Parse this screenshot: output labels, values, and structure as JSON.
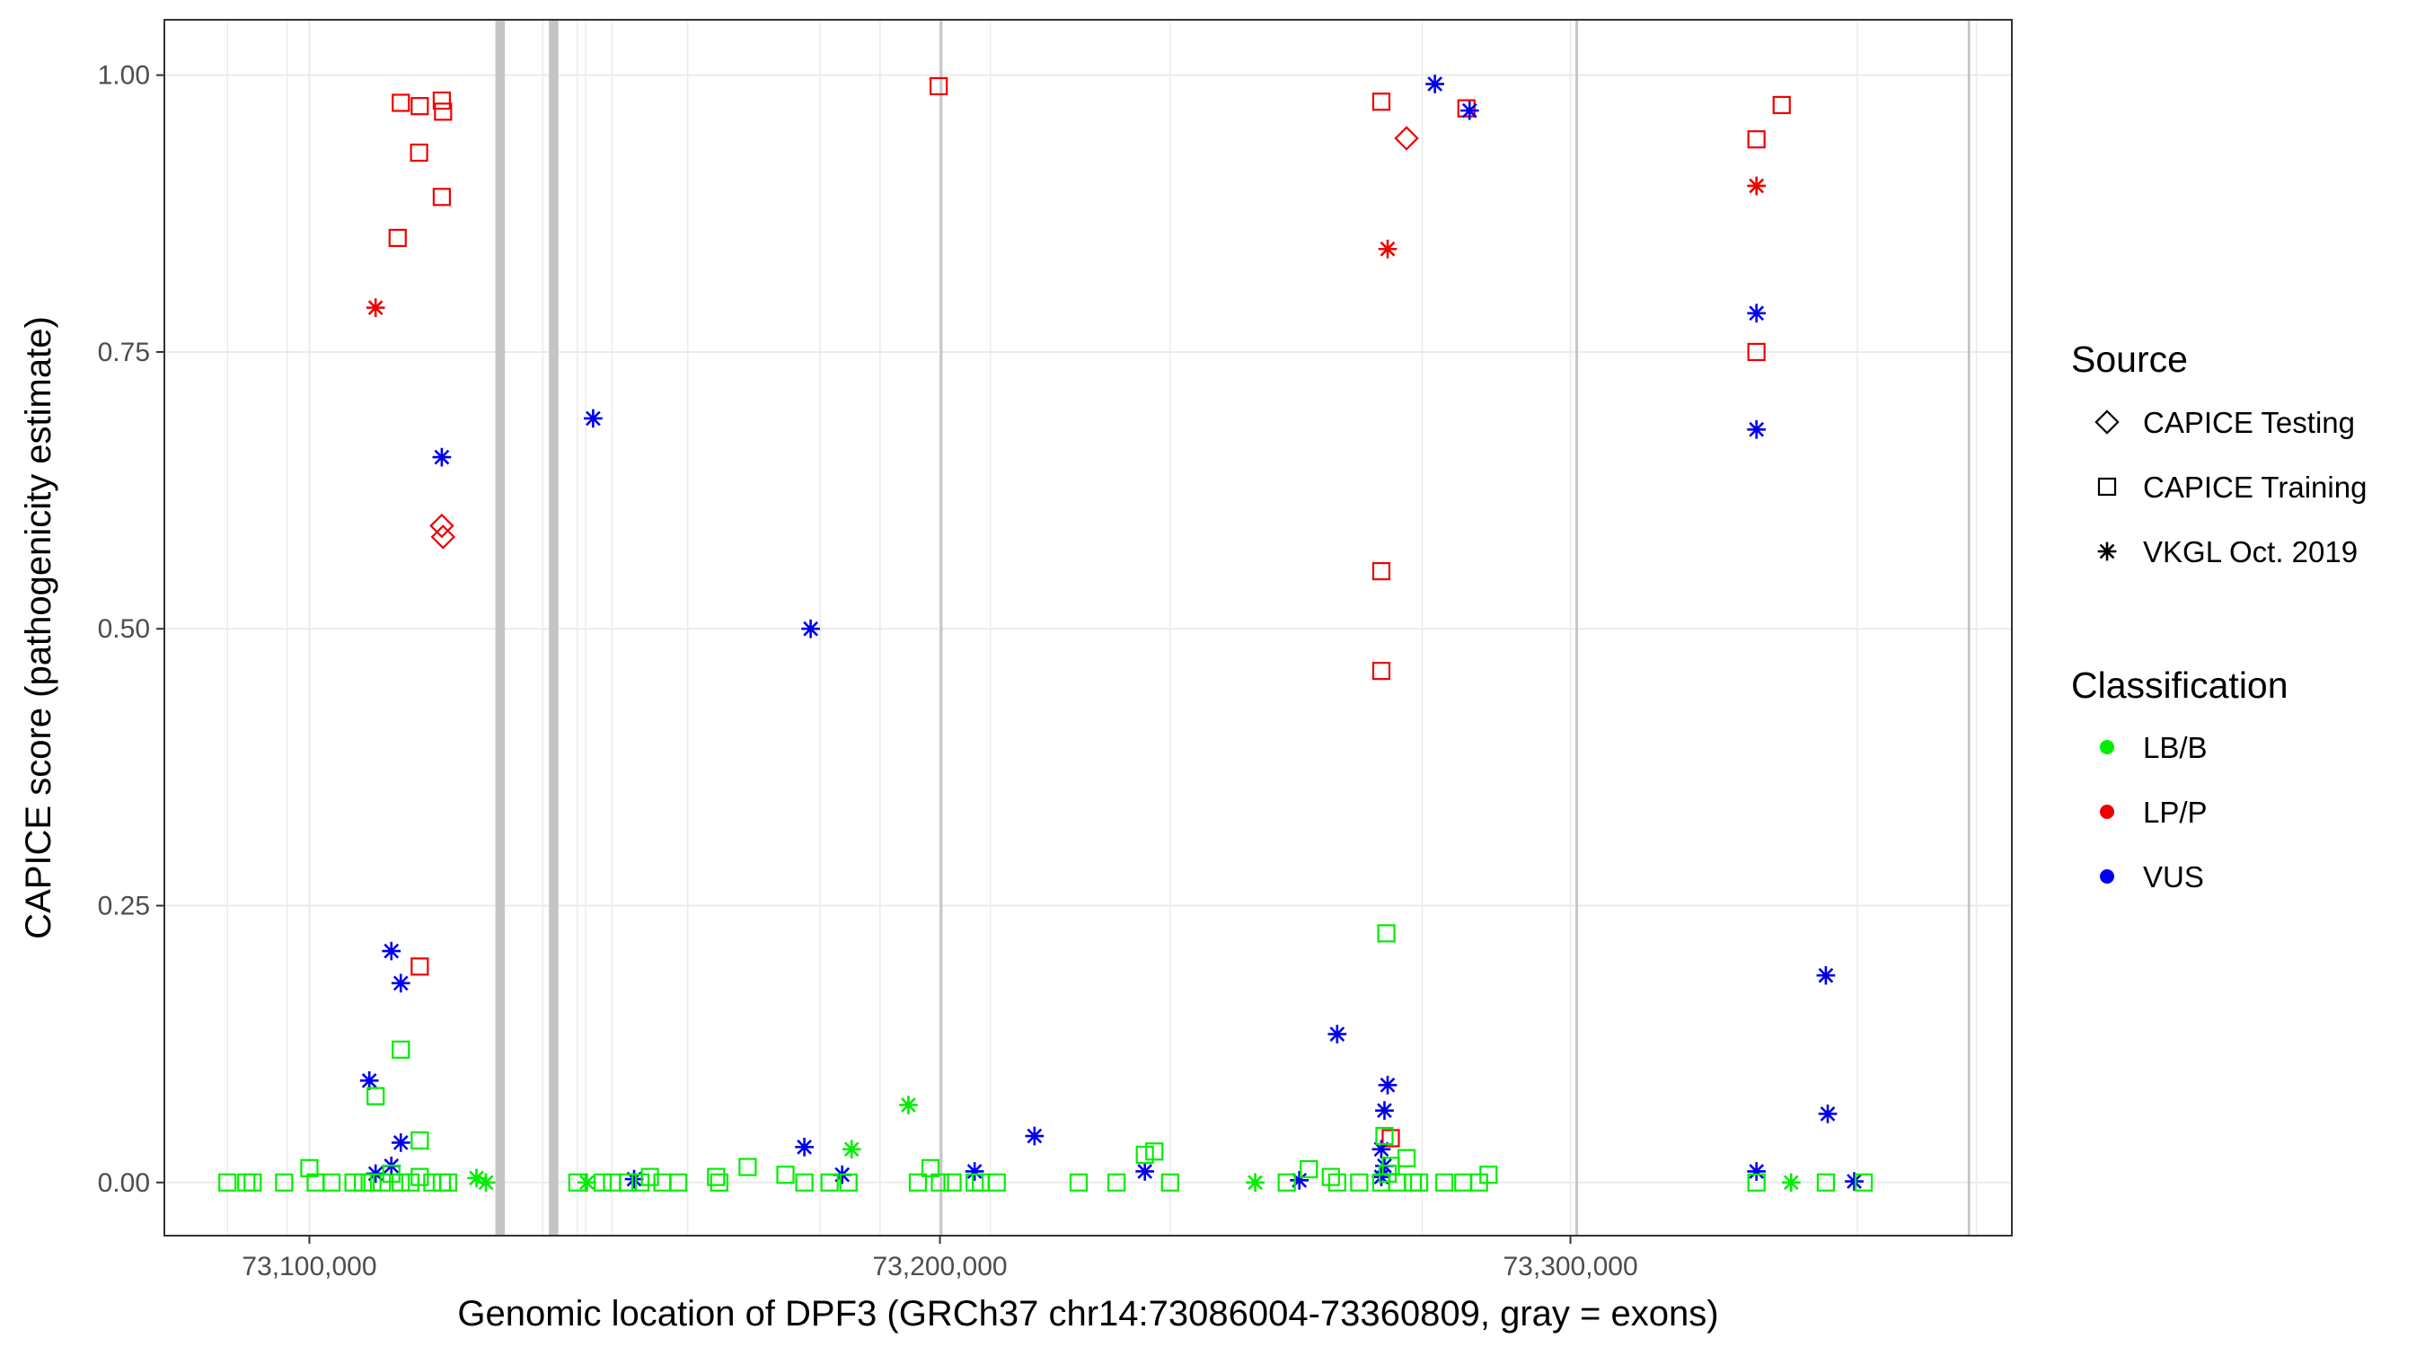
{
  "chart_data": {
    "type": "scatter",
    "title": "",
    "xlabel": "Genomic location of DPF3 (GRCh37 chr14:73086004-73360809, gray = exons)",
    "ylabel": "CAPICE score (pathogenicity estimate)",
    "xlim": [
      73077000,
      73370000
    ],
    "ylim": [
      -0.048,
      1.05
    ],
    "x_ticks": [
      73100000,
      73200000,
      73300000
    ],
    "x_tick_labels": [
      "73,100,000",
      "73,200,000",
      "73,300,000"
    ],
    "y_ticks": [
      0,
      0.25,
      0.5,
      0.75,
      1.0
    ],
    "y_tick_labels": [
      "0.00",
      "0.25",
      "0.50",
      "0.75",
      "1.00"
    ],
    "grid": true,
    "exons": [
      {
        "start": 73129500,
        "end": 73131000
      },
      {
        "start": 73138000,
        "end": 73139500
      },
      {
        "start": 73200000,
        "end": 73200400
      },
      {
        "start": 73300800,
        "end": 73301200
      },
      {
        "start": 73363000,
        "end": 73363400
      }
    ],
    "minor_grid_x": [
      73087000,
      73096500,
      73137000,
      73142500,
      73143800,
      73148000,
      73160000,
      73181000,
      73190500,
      73208000,
      73236500,
      73276500,
      73345500,
      73364400
    ],
    "legend": {
      "source": {
        "title": "Source",
        "entries": [
          {
            "label": "CAPICE Testing",
            "marker": "diamond"
          },
          {
            "label": "CAPICE Training",
            "marker": "square"
          },
          {
            "label": "VKGL Oct. 2019",
            "marker": "asterisk"
          }
        ]
      },
      "classification": {
        "title": "Classification",
        "entries": [
          {
            "label": "LB/B",
            "color": "#00ee00"
          },
          {
            "label": "LP/P",
            "color": "#ee0000"
          },
          {
            "label": "VUS",
            "color": "#0000ee"
          }
        ]
      },
      "placement": "right"
    },
    "colors": {
      "LB/B": "#00ee00",
      "LP/P": "#ee0000",
      "VUS": "#0000ee"
    },
    "series": [
      {
        "name": "LP/P",
        "source": "CAPICE Training",
        "marker": "square",
        "x": [
          73114500,
          73117500,
          73121000,
          73121200,
          73117400,
          73121000,
          73114000,
          73117500,
          73199800,
          73270000,
          73283500,
          73270000,
          73270000,
          73329500,
          73333500,
          73329500,
          73271500
        ],
        "y": [
          0.975,
          0.972,
          0.977,
          0.967,
          0.93,
          0.89,
          0.853,
          0.195,
          0.99,
          0.976,
          0.97,
          0.552,
          0.462,
          0.942,
          0.973,
          0.75,
          0.04
        ]
      },
      {
        "name": "LP/P",
        "source": "CAPICE Testing",
        "marker": "diamond",
        "x": [
          73121000,
          73121200,
          73274000
        ],
        "y": [
          0.593,
          0.583,
          0.943
        ]
      },
      {
        "name": "LP/P",
        "source": "VKGL Oct. 2019",
        "marker": "asterisk",
        "x": [
          73110500,
          73271000,
          73329500
        ],
        "y": [
          0.79,
          0.843,
          0.9
        ]
      },
      {
        "name": "VUS",
        "source": "VKGL Oct. 2019",
        "marker": "asterisk",
        "x": [
          73121000,
          73145000,
          73179500,
          73278500,
          73284000,
          73329500,
          73329500,
          73113000,
          73114500,
          73109500,
          73114500,
          73113000,
          73110500,
          73178500,
          73263000,
          73271000,
          73270500,
          73270000,
          73270500,
          73270000,
          73340500,
          73340800,
          73329500,
          73215000,
          73205500,
          73232500,
          73184500,
          73151500,
          73257000,
          73345000
        ],
        "y": [
          0.655,
          0.69,
          0.5,
          0.992,
          0.968,
          0.785,
          0.68,
          0.209,
          0.18,
          0.092,
          0.036,
          0.015,
          0.008,
          0.032,
          0.134,
          0.088,
          0.065,
          0.03,
          0.015,
          0.005,
          0.187,
          0.062,
          0.01,
          0.042,
          0.01,
          0.01,
          0.007,
          0.003,
          0.002,
          0.001
        ]
      },
      {
        "name": "LB/B",
        "source": "CAPICE Training",
        "marker": "square",
        "x": [
          73087000,
          73090000,
          73091000,
          73096000,
          73100000,
          73101000,
          73103500,
          73107000,
          73108500,
          73110000,
          73111500,
          73113000,
          73114500,
          73116000,
          73117500,
          73119500,
          73121000,
          73122000,
          73114500,
          73110500,
          73117500,
          73142500,
          73146500,
          73148000,
          73150500,
          73152500,
          73154000,
          73156000,
          73158500,
          73164500,
          73165000,
          73169500,
          73175500,
          73178500,
          73182500,
          73185500,
          73196500,
          73198500,
          73200000,
          73202000,
          73205500,
          73206500,
          73209000,
          73222000,
          73228000,
          73232500,
          73234000,
          73236500,
          73255000,
          73258500,
          73262000,
          73263000,
          73266500,
          73270000,
          73270500,
          73271000,
          73272500,
          73274000,
          73275000,
          73276000,
          73280000,
          73283000,
          73285500,
          73287000,
          73270800,
          73271500,
          73329500,
          73340500,
          73346500
        ],
        "y": [
          0.0,
          0.0,
          0.0,
          0.0,
          0.013,
          0.0,
          0.0,
          0.0,
          0.0,
          0.0,
          0.0,
          0.008,
          0.0,
          0.0,
          0.005,
          0.0,
          0.0,
          0.0,
          0.12,
          0.078,
          0.038,
          0.0,
          0.0,
          0.0,
          0.0,
          0.0,
          0.005,
          0.0,
          0.0,
          0.005,
          0.0,
          0.014,
          0.007,
          0.0,
          0.0,
          0.0,
          0.0,
          0.013,
          0.0,
          0.0,
          0.0,
          0.0,
          0.0,
          0.0,
          0.0,
          0.025,
          0.028,
          0.0,
          0.0,
          0.012,
          0.005,
          0.0,
          0.0,
          0.0,
          0.042,
          0.008,
          0.0,
          0.022,
          0.0,
          0.0,
          0.0,
          0.0,
          0.0,
          0.007,
          0.225,
          0.015,
          0.0,
          0.0,
          0.0
        ]
      },
      {
        "name": "LB/B",
        "source": "VKGL Oct. 2019",
        "marker": "asterisk",
        "x": [
          73126500,
          73128000,
          73144000,
          73186000,
          73195000,
          73250000,
          73335000
        ],
        "y": [
          0.004,
          0.0,
          0.0,
          0.03,
          0.07,
          0.0,
          0.0
        ]
      }
    ]
  }
}
